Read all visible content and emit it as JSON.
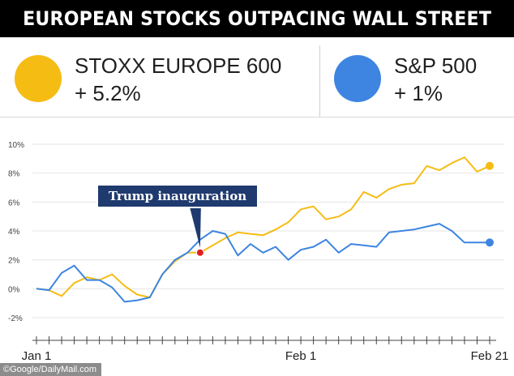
{
  "header": {
    "title": "EUROPEAN STOCKS OUTPACING WALL STREET"
  },
  "legend": [
    {
      "name": "STOXX EUROPE 600",
      "change": "+ 5.2%",
      "color": "#F5BC14"
    },
    {
      "name": "S&P 500",
      "change": "+ 1%",
      "color": "#3D85E0"
    }
  ],
  "credit": "©Google/DailyMail.com",
  "chart_data": {
    "type": "line",
    "ylim": [
      -2,
      10
    ],
    "y_ticks": [
      "10%",
      "8%",
      "6%",
      "4%",
      "2%",
      "0%",
      "-2%"
    ],
    "y_tick_values": [
      10,
      8,
      6,
      4,
      2,
      0,
      -2
    ],
    "x_labels": [
      "Jan 1",
      "Feb 1",
      "Feb 21"
    ],
    "x_label_days": [
      0,
      21,
      36
    ],
    "x_range_days": [
      0,
      36
    ],
    "grid": true,
    "annotation": {
      "text": "Trump inauguration",
      "day": 13,
      "value": 2.5
    },
    "series": [
      {
        "name": "STOXX EUROPE 600",
        "color": "#F5BC14",
        "days": [
          0,
          1,
          2,
          3,
          4,
          5,
          6,
          7,
          8,
          9,
          10,
          11,
          12,
          13,
          14,
          15,
          16,
          17,
          18,
          19,
          20,
          21,
          22,
          23,
          24,
          25,
          26,
          27,
          28,
          29,
          30,
          31,
          32,
          33,
          34,
          35,
          36
        ],
        "values": [
          0,
          -0.1,
          -0.5,
          0.4,
          0.8,
          0.6,
          1.0,
          0.2,
          -0.4,
          -0.6,
          1.0,
          1.9,
          2.5,
          2.5,
          3.0,
          3.5,
          3.9,
          3.8,
          3.7,
          4.1,
          4.6,
          5.5,
          5.7,
          4.8,
          5.0,
          5.5,
          6.7,
          6.3,
          6.9,
          7.2,
          7.3,
          8.5,
          8.2,
          8.7,
          9.1,
          8.1,
          8.5
        ]
      },
      {
        "name": "S&P 500",
        "color": "#3D85E0",
        "days": [
          0,
          1,
          2,
          3,
          4,
          5,
          6,
          7,
          8,
          9,
          10,
          11,
          12,
          13,
          14,
          15,
          16,
          17,
          18,
          19,
          20,
          21,
          22,
          23,
          24,
          25,
          26,
          27,
          28,
          29,
          30,
          31,
          32,
          33,
          34,
          35,
          36
        ],
        "values": [
          0,
          -0.1,
          1.1,
          1.6,
          0.6,
          0.6,
          0.1,
          -0.9,
          -0.8,
          -0.6,
          1.0,
          2.0,
          2.5,
          3.4,
          4.0,
          3.8,
          2.3,
          3.1,
          2.5,
          2.9,
          2.0,
          2.7,
          2.9,
          3.4,
          2.5,
          3.1,
          3.0,
          2.9,
          3.9,
          4.0,
          4.1,
          4.3,
          4.5,
          4.0,
          3.2,
          3.2,
          3.2
        ]
      }
    ]
  }
}
